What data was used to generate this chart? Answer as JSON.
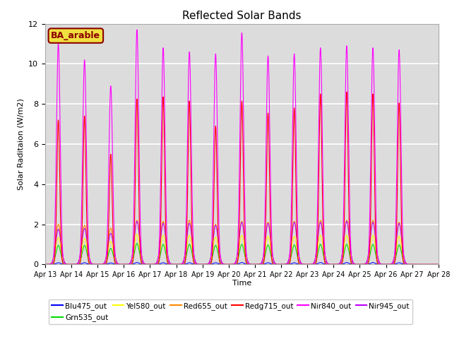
{
  "title": "Reflected Solar Bands",
  "xlabel": "Time",
  "ylabel": "Solar Raditaion (W/m2)",
  "ylim": [
    0,
    12
  ],
  "yticks": [
    0,
    2,
    4,
    6,
    8,
    10,
    12
  ],
  "background_color": "#dcdcdc",
  "grid_color": "white",
  "annotation_text": "BA_arable",
  "annotation_bg": "#f0e040",
  "annotation_fg": "#8b0000",
  "day_labels": [
    "Apr 13",
    "Apr 14",
    "Apr 15",
    "Apr 16",
    "Apr 17",
    "Apr 18",
    "Apr 19",
    "Apr 20",
    "Apr 21",
    "Apr 22",
    "Apr 23",
    "Apr 24",
    "Apr 25",
    "Apr 26",
    "Apr 27",
    "Apr 28"
  ],
  "n_days": 15,
  "nir840_peaks": [
    11.0,
    10.2,
    8.9,
    11.7,
    10.8,
    10.6,
    10.5,
    11.55,
    10.4,
    10.5,
    10.8,
    10.9,
    10.8,
    10.7,
    0.0
  ],
  "redg715_peaks": [
    7.2,
    7.4,
    5.5,
    8.25,
    8.35,
    8.15,
    6.9,
    8.15,
    7.55,
    7.8,
    8.5,
    8.6,
    8.5,
    8.05,
    0.0
  ],
  "red655_peaks": [
    2.0,
    1.95,
    1.8,
    2.2,
    2.15,
    2.2,
    2.0,
    2.15,
    2.1,
    2.15,
    2.2,
    2.2,
    2.2,
    2.1,
    0.0
  ],
  "nir945_peaks": [
    1.75,
    1.8,
    1.55,
    2.15,
    2.05,
    2.05,
    1.95,
    2.1,
    2.05,
    2.1,
    2.1,
    2.15,
    2.1,
    2.05,
    0.0
  ],
  "yel580_peaks": [
    1.35,
    1.3,
    1.15,
    1.5,
    1.45,
    1.45,
    1.35,
    1.45,
    1.4,
    1.4,
    1.45,
    1.45,
    1.45,
    1.4,
    0.0
  ],
  "grn535_peaks": [
    0.95,
    0.95,
    0.8,
    1.05,
    1.0,
    1.0,
    0.95,
    1.0,
    0.97,
    0.97,
    1.0,
    1.0,
    1.0,
    0.97,
    0.0
  ],
  "blu475_peaks": [
    0.08,
    0.08,
    0.07,
    0.09,
    0.08,
    0.08,
    0.08,
    0.09,
    0.08,
    0.08,
    0.09,
    0.09,
    0.09,
    0.08,
    0.0
  ],
  "series_colors": {
    "Blu475_out": "#0000ff",
    "Grn535_out": "#00dd00",
    "Yel580_out": "#ffff00",
    "Red655_out": "#ff8800",
    "Redg715_out": "#ff0000",
    "Nir840_out": "#ff00ff",
    "Nir945_out": "#bb00ff"
  }
}
